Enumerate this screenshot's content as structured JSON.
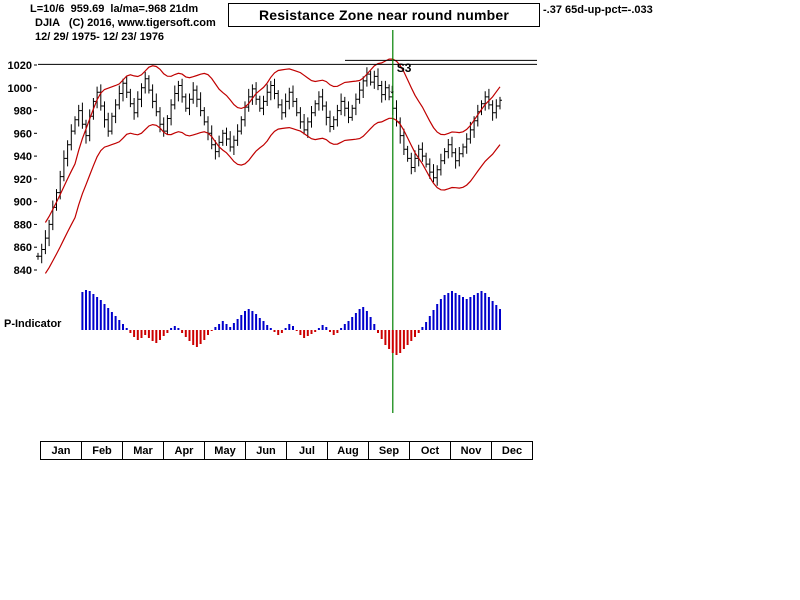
{
  "header": {
    "left_text": "L=10/6  959.69  la/ma=.968 21dm",
    "right_text": "-.37 65d-up-pct=-.033",
    "line2": "DJIA   (C) 2016, www.tigersoft.com",
    "line3": "12/ 29/ 1975- 12/ 23/ 1976"
  },
  "title_box": {
    "text": "Resistance Zone near round number"
  },
  "p_indicator": {
    "label": "P-Indicator"
  },
  "annotations": {
    "signal_label": "S3",
    "signal_arrow": "↓",
    "signal_index": 96,
    "signal_date": "10/6",
    "resistance_level": 1020.5,
    "resistance_zone_level": 1024
  },
  "colors": {
    "bars": "#000000",
    "bands": "#c00000",
    "signal_line": "#008000",
    "indicator_positive": "#0000cc",
    "indicator_negative": "#cc0000",
    "resistance": "#000000"
  },
  "chart_data": {
    "type": "ohlc",
    "symbol": "DJIA",
    "date_range": "12/29/1975 - 12/23/1976",
    "title": "Resistance Zone near round number",
    "y_ticks": [
      1020,
      1000,
      980,
      960,
      940,
      920,
      900,
      880,
      860,
      840
    ],
    "ylim": [
      833,
      1030
    ],
    "grid": false,
    "months": [
      "Jan",
      "Feb",
      "Mar",
      "Apr",
      "May",
      "Jun",
      "Jul",
      "Aug",
      "Sep",
      "Oct",
      "Nov",
      "Dec"
    ],
    "bands": {
      "kind": "moving-average-envelope",
      "window_days": 21,
      "offset_pct": 2.6
    },
    "close": [
      852,
      858,
      868,
      880,
      895,
      908,
      922,
      938,
      950,
      962,
      972,
      980,
      968,
      958,
      975,
      988,
      996,
      984,
      972,
      962,
      975,
      985,
      995,
      1004,
      996,
      986,
      978,
      990,
      1000,
      1008,
      998,
      988,
      979,
      968,
      962,
      973,
      985,
      995,
      1002,
      992,
      982,
      990,
      998,
      990,
      980,
      970,
      960,
      950,
      944,
      952,
      960,
      955,
      948,
      954,
      962,
      972,
      983,
      992,
      999,
      990,
      982,
      988,
      996,
      1002,
      995,
      985,
      978,
      988,
      996,
      988,
      978,
      970,
      963,
      970,
      978,
      986,
      992,
      984,
      974,
      966,
      972,
      980,
      988,
      982,
      974,
      982,
      990,
      998,
      1006,
      1012,
      1005,
      1010,
      1002,
      994,
      1000,
      992,
      982,
      970,
      958,
      946,
      938,
      930,
      938,
      946,
      940,
      933,
      926,
      921,
      928,
      936,
      944,
      950,
      943,
      936,
      942,
      948,
      955,
      963,
      971,
      979,
      986,
      992,
      985,
      978,
      984,
      989
    ],
    "indicator": [
      0,
      0,
      0,
      0,
      0,
      0,
      0,
      0,
      0,
      0,
      0,
      0,
      38,
      40,
      39,
      36,
      33,
      30,
      26,
      22,
      18,
      14,
      10,
      6,
      2,
      -3,
      -7,
      -10,
      -8,
      -5,
      -8,
      -11,
      -13,
      -10,
      -6,
      -3,
      2,
      4,
      2,
      -3,
      -7,
      -11,
      -15,
      -17,
      -14,
      -10,
      -5,
      -1,
      3,
      6,
      9,
      6,
      3,
      7,
      11,
      15,
      19,
      21,
      19,
      16,
      12,
      9,
      5,
      2,
      -2,
      -5,
      -3,
      2,
      6,
      4,
      -1,
      -5,
      -8,
      -6,
      -4,
      -2,
      2,
      5,
      3,
      -2,
      -5,
      -3,
      2,
      6,
      9,
      13,
      17,
      21,
      23,
      19,
      13,
      6,
      -3,
      -9,
      -15,
      -19,
      -23,
      -25,
      -23,
      -19,
      -15,
      -11,
      -7,
      -3,
      3,
      8,
      14,
      20,
      26,
      31,
      35,
      37,
      39,
      37,
      35,
      33,
      31,
      33,
      35,
      37,
      39,
      37,
      33,
      29,
      25,
      21
    ]
  }
}
